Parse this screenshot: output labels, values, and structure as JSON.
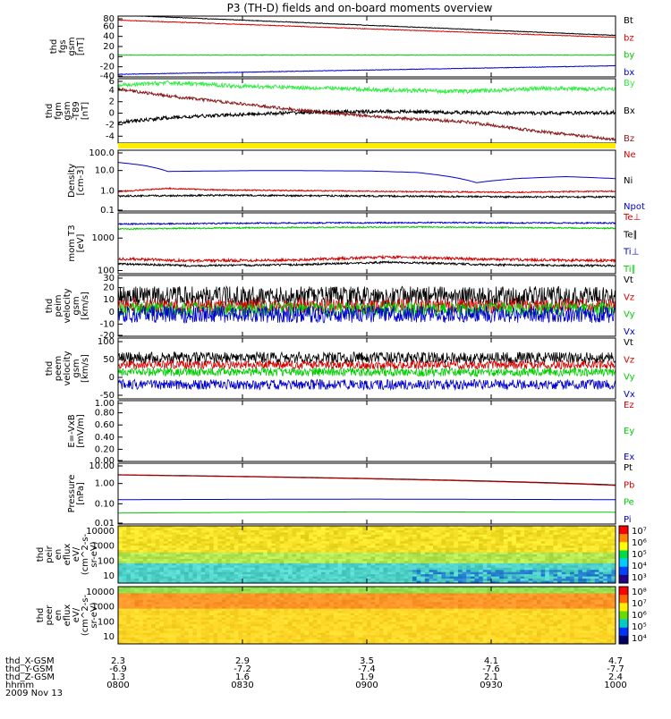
{
  "title": "P3 (TH-D) fields and on-board moments overview",
  "colors": {
    "black": "#000000",
    "red": "#d40000",
    "green": "#00cc00",
    "blue": "#0000cc",
    "lightgreen": "#33ee44",
    "darkred": "#8b1a1a",
    "yellow": "#ffee00"
  },
  "chart_data": [
    {
      "id": "fgs",
      "type": "line",
      "ylabel": [
        "thd",
        "fgs",
        "gsm",
        "[nT]"
      ],
      "yticks": [
        "80",
        "60",
        "40",
        "20",
        "0",
        "-20",
        "-40"
      ],
      "ylim": [
        -40,
        80
      ],
      "series": [
        {
          "name": "Bt",
          "color": "#000000",
          "x": [
            0,
            1
          ],
          "y": [
            82,
            42
          ],
          "noise": 0.6
        },
        {
          "name": "bz",
          "color": "#d40000",
          "x": [
            0,
            1
          ],
          "y": [
            72,
            38
          ],
          "noise": 0.6
        },
        {
          "name": "by",
          "color": "#00cc00",
          "x": [
            0,
            1
          ],
          "y": [
            3,
            3
          ],
          "noise": 0.5
        },
        {
          "name": "bx",
          "color": "#0000cc",
          "x": [
            0,
            1
          ],
          "y": [
            -35,
            -18
          ],
          "noise": 0.5
        }
      ]
    },
    {
      "id": "fgm-dt",
      "type": "line",
      "ylabel": [
        "thd",
        "fgm",
        "gsm",
        "-T89",
        "[nT]"
      ],
      "yticks": [
        "6",
        "4",
        "2",
        "0",
        "-2",
        "-4"
      ],
      "ylim": [
        -5.2,
        6
      ],
      "series": [
        {
          "name": "By",
          "color": "#33ee44",
          "x": [
            0,
            0.1,
            0.25,
            0.4,
            0.55,
            0.7,
            0.85,
            1
          ],
          "y": [
            4.8,
            5.3,
            4.7,
            4.4,
            4.0,
            3.8,
            4.3,
            4.2
          ],
          "noise": 0.35
        },
        {
          "name": "Bx",
          "color": "#000000",
          "x": [
            0,
            0.1,
            0.25,
            0.4,
            0.55,
            0.7,
            0.85,
            1
          ],
          "y": [
            -1.6,
            -0.8,
            -0.2,
            0.2,
            0.3,
            0.1,
            0.0,
            0.1
          ],
          "noise": 0.3
        },
        {
          "name": "Bz",
          "color": "#8b1a1a",
          "x": [
            0,
            0.1,
            0.25,
            0.4,
            0.55,
            0.7,
            0.85,
            1
          ],
          "y": [
            4.2,
            3.0,
            1.6,
            0.2,
            -0.8,
            -1.5,
            -3.2,
            -4.6
          ],
          "noise": 0.25
        }
      ]
    },
    {
      "id": "density",
      "type": "line",
      "log": true,
      "ylabel": [
        "Density",
        "[cm-3]"
      ],
      "yticks": [
        "100.0",
        "10.0",
        "1.0",
        "0.1"
      ],
      "ylim": [
        0.1,
        100
      ],
      "series": [
        {
          "name": "Ne",
          "color": "#d40000",
          "x": [
            0,
            0.1,
            0.2,
            0.4,
            0.6,
            0.8,
            1
          ],
          "y": [
            0.9,
            1.3,
            1.1,
            1.0,
            0.9,
            0.85,
            0.95
          ],
          "noise": 0.03
        },
        {
          "name": "Ni",
          "color": "#000000",
          "x": [
            0,
            0.2,
            0.5,
            0.8,
            1
          ],
          "y": [
            0.55,
            0.6,
            0.55,
            0.5,
            0.5
          ],
          "noise": 0.04
        },
        {
          "name": "Npot",
          "color": "#0000cc",
          "x": [
            0,
            0.05,
            0.1,
            0.3,
            0.5,
            0.6,
            0.72,
            0.8,
            0.9,
            1
          ],
          "y": [
            25,
            18,
            9,
            10,
            9.5,
            8,
            2.5,
            4,
            5,
            4
          ],
          "noise": 0.0
        }
      ]
    },
    {
      "id": "mom-temp",
      "type": "line",
      "log": true,
      "ylabel": [
        "mom T3",
        "[eV]"
      ],
      "yticks": [
        "1000",
        "100"
      ],
      "ylim": [
        80,
        6000
      ],
      "series": [
        {
          "name": "Te⊥",
          "color": "#d40000",
          "x": [
            0,
            0.15,
            0.35,
            0.55,
            0.75,
            1
          ],
          "y": [
            230,
            200,
            210,
            260,
            220,
            200
          ],
          "noise": 0.04
        },
        {
          "name": "Te∥",
          "color": "#000000",
          "x": [
            0,
            0.15,
            0.35,
            0.55,
            0.75,
            1
          ],
          "y": [
            160,
            140,
            150,
            180,
            150,
            140
          ],
          "noise": 0.03
        },
        {
          "name": "Ti⊥",
          "color": "#0000cc",
          "x": [
            0,
            0.3,
            0.6,
            1
          ],
          "y": [
            2700,
            2900,
            3000,
            2900
          ],
          "noise": 0.02
        },
        {
          "name": "Ti∥",
          "color": "#00cc00",
          "x": [
            0,
            0.3,
            0.6,
            1
          ],
          "y": [
            1900,
            2100,
            2200,
            2000
          ],
          "noise": 0.02
        }
      ]
    },
    {
      "id": "peim-vel",
      "type": "line",
      "ylabel": [
        "thd",
        "peim",
        "velocity",
        "gsm",
        "[km/s]"
      ],
      "yticks": [
        "30",
        "20",
        "10",
        "0",
        "-10",
        "-20"
      ],
      "ylim": [
        -20,
        30
      ],
      "series": [
        {
          "name": "Vt",
          "color": "#000000",
          "x": [
            0,
            1
          ],
          "y": [
            13,
            13
          ],
          "noise": 8
        },
        {
          "name": "Vz",
          "color": "#d40000",
          "x": [
            0,
            1
          ],
          "y": [
            5,
            5
          ],
          "noise": 6
        },
        {
          "name": "Vy",
          "color": "#00cc00",
          "x": [
            0,
            1
          ],
          "y": [
            2,
            2
          ],
          "noise": 6
        },
        {
          "name": "Vx",
          "color": "#0000cc",
          "x": [
            0,
            1
          ],
          "y": [
            -2,
            -2
          ],
          "noise": 7
        }
      ]
    },
    {
      "id": "peem-vel",
      "type": "line",
      "ylabel": [
        "thd",
        "peem",
        "velocity",
        "gsm",
        "[km/s]"
      ],
      "yticks": [
        "100",
        "50",
        "0",
        "-50"
      ],
      "ylim": [
        -60,
        110
      ],
      "series": [
        {
          "name": "Vt",
          "color": "#000000",
          "x": [
            0,
            1
          ],
          "y": [
            55,
            55
          ],
          "noise": 16
        },
        {
          "name": "Vz",
          "color": "#d40000",
          "x": [
            0,
            1
          ],
          "y": [
            35,
            35
          ],
          "noise": 12
        },
        {
          "name": "Vy",
          "color": "#00cc00",
          "x": [
            0,
            1
          ],
          "y": [
            15,
            15
          ],
          "noise": 12
        },
        {
          "name": "Vx",
          "color": "#0000cc",
          "x": [
            0,
            1
          ],
          "y": [
            -20,
            -20
          ],
          "noise": 14
        }
      ]
    },
    {
      "id": "exb",
      "type": "line",
      "ylabel": [
        "E=-VxB",
        "[mV/m]"
      ],
      "yticks": [
        "1.00",
        "0.80",
        "0.60",
        "0.40",
        "0.20",
        "0.00"
      ],
      "ylim": [
        0,
        1
      ],
      "series": [
        {
          "name": "Ez",
          "color": "#d40000",
          "x": [],
          "y": []
        },
        {
          "name": "Ey",
          "color": "#00cc00",
          "x": [],
          "y": []
        },
        {
          "name": "Ex",
          "color": "#0000cc",
          "x": [],
          "y": []
        }
      ]
    },
    {
      "id": "pressure",
      "type": "line",
      "log": true,
      "ylabel": [
        "Pressure",
        "[nPa]"
      ],
      "yticks": [
        "10.00",
        "1.00",
        "0.10",
        "0.01"
      ],
      "ylim": [
        0.01,
        10
      ],
      "series": [
        {
          "name": "Pt",
          "color": "#000000",
          "x": [
            0,
            1
          ],
          "y": [
            2.7,
            0.85
          ],
          "noise": 0.0
        },
        {
          "name": "Pb",
          "color": "#d40000",
          "x": [
            0,
            1
          ],
          "y": [
            2.6,
            0.8
          ],
          "noise": 0.0
        },
        {
          "name": "Pe",
          "color": "#00cc00",
          "x": [
            0,
            0.5,
            1
          ],
          "y": [
            0.035,
            0.04,
            0.038
          ],
          "noise": 0.0
        },
        {
          "name": "Pi",
          "color": "#0000cc",
          "x": [
            0,
            0.5,
            1
          ],
          "y": [
            0.16,
            0.17,
            0.16
          ],
          "noise": 0.0
        }
      ]
    },
    {
      "id": "peir",
      "type": "heatmap",
      "ylabel": [
        "thd",
        "peir",
        "en",
        "eflux",
        "eV/",
        "(cm^2-s-",
        "sr-eV)"
      ],
      "yticks": [
        "10000",
        "1000",
        "100",
        "10"
      ],
      "colorbar_ticks": [
        "10⁷",
        "10⁶",
        "10⁵",
        "10⁴",
        "10³"
      ]
    },
    {
      "id": "peer",
      "type": "heatmap",
      "ylabel": [
        "thd",
        "peer",
        "en",
        "eflux",
        "eV/",
        "(cm^2-s-",
        "sr-eV)"
      ],
      "yticks": [
        "10000",
        "1000",
        "100",
        "10"
      ],
      "colorbar_ticks": [
        "10⁸",
        "10⁷",
        "10⁶",
        "10⁵",
        "10⁴"
      ]
    }
  ],
  "ephemeris": {
    "rows": [
      {
        "label": "thd_X-GSM",
        "values": [
          "2.3",
          "2.9",
          "3.5",
          "4.1",
          "4.7"
        ]
      },
      {
        "label": "thd_Y-GSM",
        "values": [
          "-6.9",
          "-7.2",
          "-7.4",
          "-7.6",
          "-7.7"
        ]
      },
      {
        "label": "thd_Z-GSM",
        "values": [
          "1.3",
          "1.6",
          "1.9",
          "2.1",
          "2.4"
        ]
      },
      {
        "label": "hhmm",
        "values": [
          "0800",
          "0830",
          "0900",
          "0930",
          "1000"
        ]
      }
    ],
    "date": "2009 Nov 13"
  }
}
